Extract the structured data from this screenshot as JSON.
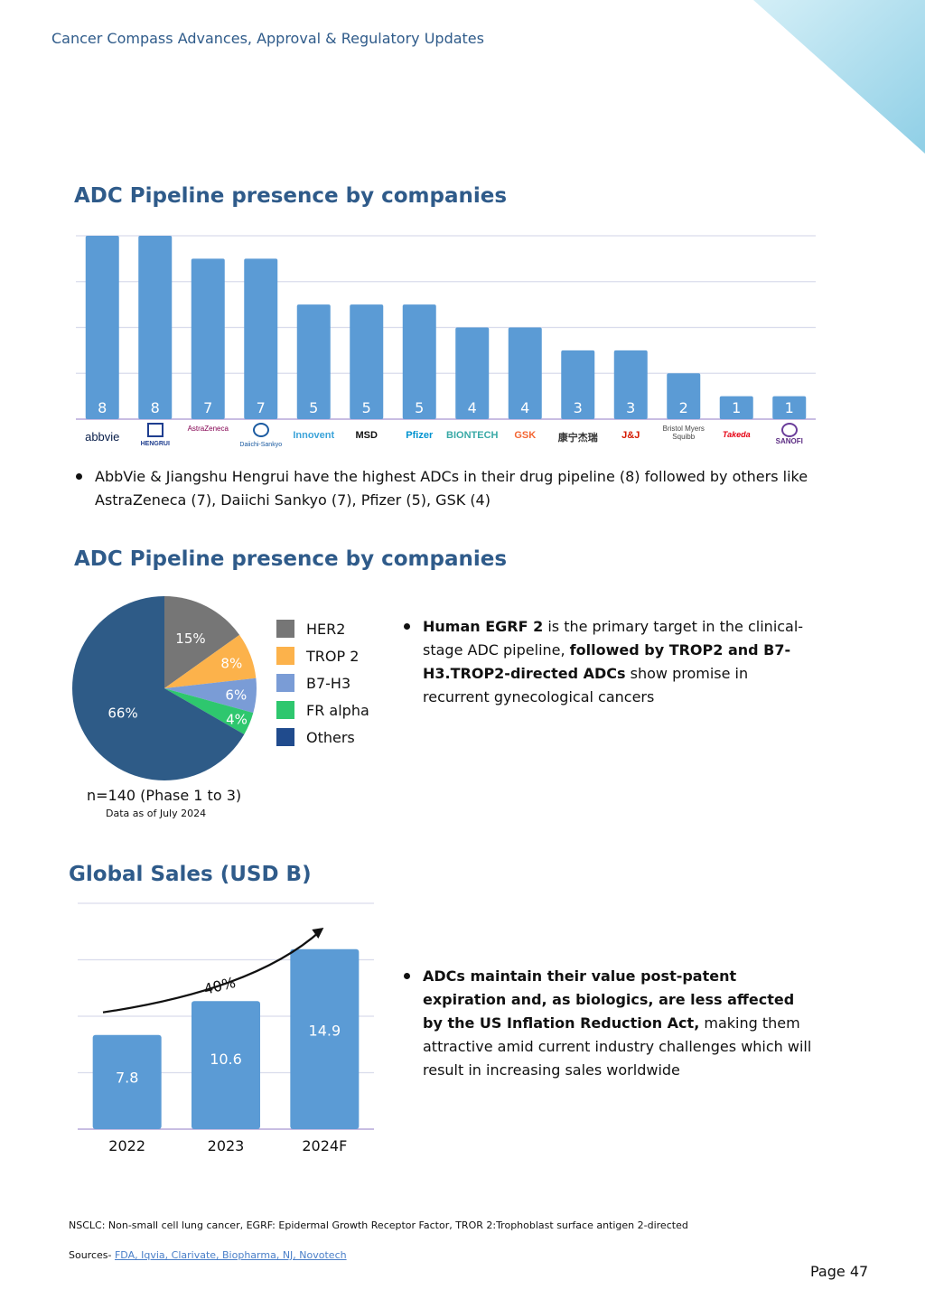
{
  "header": {
    "title": "Cancer Compass Advances, Approval & Regulatory Updates"
  },
  "colors": {
    "accent": "#2f5b8a",
    "bar": "#5b9bd5",
    "grid": "#d9dcec",
    "corner": "#a7dbec"
  },
  "section1": {
    "title": "ADC Pipeline presence by companies",
    "bullet": "AbbVie & Jiangshu Hengrui have the highest ADCs in their drug pipeline (8) followed by others like AstraZeneca (7), Daiichi Sankyo (7), Pfizer (5), GSK (4)",
    "logos": [
      {
        "name": "abbvie-logo",
        "text": "abbvie",
        "color": "#071d49"
      },
      {
        "name": "hengrui-logo",
        "text": "HENGRUI",
        "color": "#1f3e8f"
      },
      {
        "name": "astrazeneca-logo",
        "text": "AstraZeneca",
        "color": "#830051"
      },
      {
        "name": "daiichi-sankyo-logo",
        "text": "Daiichi-Sankyo",
        "color": "#1a5aa0"
      },
      {
        "name": "innovent-logo",
        "text": "Innovent",
        "color": "#3aa3d9"
      },
      {
        "name": "msd-logo",
        "text": "MSD",
        "color": "#111111"
      },
      {
        "name": "pfizer-logo",
        "text": "Pfizer",
        "color": "#0093d0"
      },
      {
        "name": "biontech-logo",
        "text": "BIONTECH",
        "color": "#39a9a6"
      },
      {
        "name": "gsk-logo",
        "text": "GSK",
        "color": "#f36633"
      },
      {
        "name": "alphamab-logo",
        "text": "康宁杰瑞",
        "color": "#333333"
      },
      {
        "name": "jnj-logo",
        "text": "J&J",
        "color": "#d51900"
      },
      {
        "name": "bms-logo",
        "text": "Bristol Myers Squibb",
        "color": "#444444"
      },
      {
        "name": "takeda-logo",
        "text": "Takeda",
        "color": "#e60012"
      },
      {
        "name": "sanofi-logo",
        "text": "SANOFI",
        "color": "#5b2c83"
      }
    ]
  },
  "section2": {
    "title": "ADC Pipeline presence by companies",
    "n_label": "n=140  (Phase 1 to 3)",
    "date_label": "Data as of July 2024",
    "bullet_bold1": "Human EGRF 2",
    "bullet_text1": " is the primary target in the clinical-stage ADC pipeline, ",
    "bullet_bold2": "followed by TROP2 and B7-H3.TROP2-directed ADCs",
    "bullet_text2": " show promise in recurrent gynecological cancers"
  },
  "section3": {
    "title": "Global Sales (USD B)",
    "growth_label": "40%",
    "bullet_bold": "ADCs maintain their value post-patent expiration and, as biologics, are less affected by the US Inflation Reduction Act,",
    "bullet_text": " making them attractive amid current industry challenges which will result in increasing sales worldwide"
  },
  "footer": {
    "abbreviations": "NSCLC: Non-small cell lung cancer, EGRF: Epidermal Growth Receptor Factor, TROR 2:Trophoblast surface antigen 2-directed",
    "sources_prefix": "Sources- ",
    "sources_links": "FDA, Iqvia, Clarivate, Biopharma, NJ, Novotech",
    "page": "Page 47"
  },
  "chart_data": [
    {
      "type": "bar",
      "categories": [
        "abbvie",
        "HENGRUI",
        "AstraZeneca",
        "Daiichi-Sankyo",
        "Innovent",
        "MSD",
        "Pfizer",
        "BIONTECH",
        "GSK",
        "康宁杰瑞",
        "J&J",
        "Bristol Myers Squibb",
        "Takeda",
        "SANOFI"
      ],
      "values": [
        8,
        8,
        7,
        7,
        5,
        5,
        5,
        4,
        4,
        3,
        3,
        2,
        1,
        1
      ],
      "title": "ADC Pipeline presence by companies",
      "ylim": [
        0,
        8
      ],
      "grid": true,
      "data_labels": true
    },
    {
      "type": "pie",
      "labels": [
        "HER2",
        "TROP 2",
        "B7-H3",
        "FR alpha",
        "Others"
      ],
      "values": [
        15,
        8,
        6,
        4,
        66
      ],
      "value_labels": [
        "15%",
        "8%",
        "6%",
        "4%",
        "66%"
      ],
      "colors": [
        "#767676",
        "#fcb24b",
        "#7a9cd6",
        "#2ec76e",
        "#2e5b87"
      ],
      "legend_colors": [
        "#767676",
        "#fcb24b",
        "#7a9cd6",
        "#2ec76e",
        "#204b8d"
      ],
      "legend": "right"
    },
    {
      "type": "bar",
      "categories": [
        "2022",
        "2023",
        "2024F"
      ],
      "values": [
        7.8,
        10.6,
        14.9
      ],
      "value_labels": [
        "7.8",
        "10.6",
        "14.9"
      ],
      "title": "Global Sales (USD B)",
      "annotation": "40%",
      "ylim": [
        0,
        18.7
      ],
      "grid": true
    }
  ]
}
